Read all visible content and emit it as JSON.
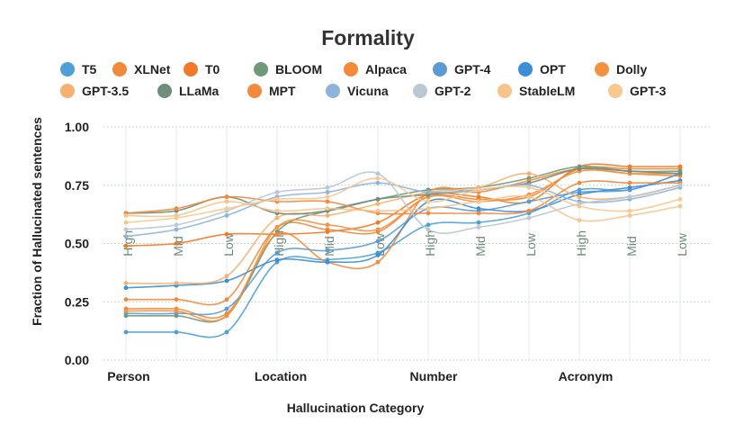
{
  "chart_data": {
    "type": "line",
    "title": "Formality",
    "xlabel": "Hallucination Category",
    "ylabel": "Fraction of Hallucinated sentences",
    "ylim": [
      0,
      1
    ],
    "yticks": [
      "0.00",
      "0.25",
      "0.50",
      "0.75",
      "1.00"
    ],
    "ytick_values": [
      0,
      0.25,
      0.5,
      0.75,
      1.0
    ],
    "grid": true,
    "legend": "top",
    "groups": [
      "Person",
      "Location",
      "Number",
      "Acronym"
    ],
    "sub_labels": [
      "High",
      "Mid",
      "Low",
      "High",
      "Mid",
      "Low",
      "High",
      "Mid",
      "Low",
      "High",
      "Mid",
      "Low"
    ],
    "x": [
      "Person-High",
      "Person-Mid",
      "Person-Low",
      "Location-High",
      "Location-Mid",
      "Location-Low",
      "Number-High",
      "Number-Mid",
      "Number-Low",
      "Acronym-High",
      "Acronym-Mid",
      "Acronym-Low"
    ],
    "series": [
      {
        "name": "T5",
        "color": "#4e9fd8",
        "values": [
          0.12,
          0.12,
          0.12,
          0.42,
          0.43,
          0.46,
          0.58,
          0.59,
          0.63,
          0.73,
          0.73,
          0.8
        ]
      },
      {
        "name": "XLNet",
        "color": "#ef8a3c",
        "values": [
          0.26,
          0.26,
          0.26,
          0.57,
          0.56,
          0.55,
          0.7,
          0.69,
          0.7,
          0.82,
          0.82,
          0.82
        ]
      },
      {
        "name": "T0",
        "color": "#f07a2a",
        "values": [
          0.49,
          0.5,
          0.54,
          0.54,
          0.55,
          0.59,
          0.71,
          0.7,
          0.68,
          0.83,
          0.83,
          0.83
        ]
      },
      {
        "name": "BLOOM",
        "color": "#6e9a77",
        "values": [
          0.19,
          0.19,
          0.19,
          0.55,
          0.64,
          0.69,
          0.73,
          0.74,
          0.78,
          0.83,
          0.81,
          0.81
        ]
      },
      {
        "name": "Alpaca",
        "color": "#f5893a",
        "values": [
          0.22,
          0.22,
          0.2,
          0.54,
          0.42,
          0.42,
          0.72,
          0.72,
          0.77,
          0.82,
          0.8,
          0.79
        ]
      },
      {
        "name": "GPT-4",
        "color": "#5a9bd6",
        "values": [
          0.2,
          0.2,
          0.22,
          0.46,
          0.47,
          0.51,
          0.65,
          0.64,
          0.68,
          0.72,
          0.73,
          0.8
        ]
      },
      {
        "name": "OPT",
        "color": "#3c8fd6",
        "values": [
          0.31,
          0.32,
          0.34,
          0.43,
          0.42,
          0.45,
          0.68,
          0.65,
          0.64,
          0.71,
          0.74,
          0.77
        ]
      },
      {
        "name": "Dolly",
        "color": "#f39240",
        "values": [
          0.21,
          0.21,
          0.19,
          0.57,
          0.58,
          0.56,
          0.7,
          0.68,
          0.71,
          0.81,
          0.8,
          0.8
        ]
      },
      {
        "name": "GPT-3.5",
        "color": "#f6b070",
        "values": [
          0.33,
          0.33,
          0.36,
          0.61,
          0.62,
          0.67,
          0.72,
          0.74,
          0.8,
          0.7,
          0.7,
          0.75
        ]
      },
      {
        "name": "LLaMa",
        "color": "#6f8d7a",
        "values": [
          0.63,
          0.64,
          0.7,
          0.63,
          0.64,
          0.69,
          0.71,
          0.73,
          0.76,
          0.82,
          0.81,
          0.8
        ]
      },
      {
        "name": "MPT",
        "color": "#f28a3e",
        "values": [
          0.63,
          0.65,
          0.7,
          0.68,
          0.68,
          0.63,
          0.63,
          0.63,
          0.64,
          0.76,
          0.76,
          0.76
        ]
      },
      {
        "name": "Vicuna",
        "color": "#8fb4dc",
        "values": [
          0.53,
          0.56,
          0.62,
          0.7,
          0.72,
          0.76,
          0.72,
          0.73,
          0.75,
          0.68,
          0.69,
          0.74
        ]
      },
      {
        "name": "GPT-2",
        "color": "#b9c8d2",
        "values": [
          0.56,
          0.58,
          0.64,
          0.72,
          0.74,
          0.8,
          0.56,
          0.57,
          0.61,
          0.67,
          0.7,
          0.75
        ]
      },
      {
        "name": "StableLM",
        "color": "#f6c48c",
        "values": [
          0.62,
          0.62,
          0.68,
          0.64,
          0.65,
          0.64,
          0.65,
          0.68,
          0.7,
          0.6,
          0.62,
          0.66
        ]
      },
      {
        "name": "GPT-3",
        "color": "#f8c890",
        "values": [
          0.59,
          0.61,
          0.65,
          0.69,
          0.7,
          0.78,
          0.68,
          0.73,
          0.74,
          0.66,
          0.64,
          0.69
        ]
      }
    ]
  }
}
